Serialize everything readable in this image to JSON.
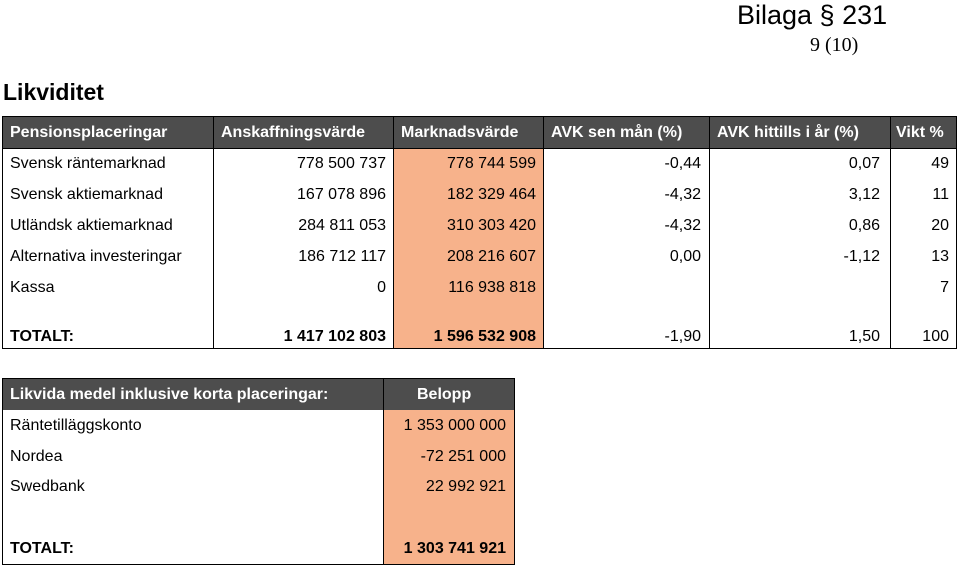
{
  "header": {
    "bilaga": "Bilaga § 231",
    "page": "9 (10)"
  },
  "section_title": "Likviditet",
  "table1": {
    "headers": [
      "Pensionsplaceringar",
      "Anskaffningsvärde",
      "Marknadsvärde",
      "AVK sen mån (%)",
      "AVK hittills i år (%)",
      "Vikt %"
    ],
    "rows": [
      [
        "Svensk räntemarknad",
        "778 500 737",
        "778 744 599",
        "-0,44",
        "0,07",
        "49"
      ],
      [
        "Svensk aktiemarknad",
        "167 078 896",
        "182 329 464",
        "-4,32",
        "3,12",
        "11"
      ],
      [
        "Utländsk aktiemarknad",
        "284 811 053",
        "310 303 420",
        "-4,32",
        "0,86",
        "20"
      ],
      [
        "Alternativa investeringar",
        "186 712 117",
        "208 216 607",
        "0,00",
        "-1,12",
        "13"
      ],
      [
        "Kassa",
        "0",
        "116 938 818",
        "",
        "",
        "7"
      ]
    ],
    "total": [
      "TOTALT:",
      "1 417 102 803",
      "1 596 532 908",
      "-1,90",
      "1,50",
      "100"
    ]
  },
  "table2": {
    "headers": [
      "Likvida medel inklusive korta placeringar:",
      "Belopp"
    ],
    "rows": [
      [
        "Räntetilläggskonto",
        "1 353 000 000"
      ],
      [
        "Nordea",
        "-72 251 000"
      ],
      [
        "Swedbank",
        "22 992 921"
      ]
    ],
    "total": [
      "TOTALT:",
      "1 303 741 921"
    ]
  }
}
